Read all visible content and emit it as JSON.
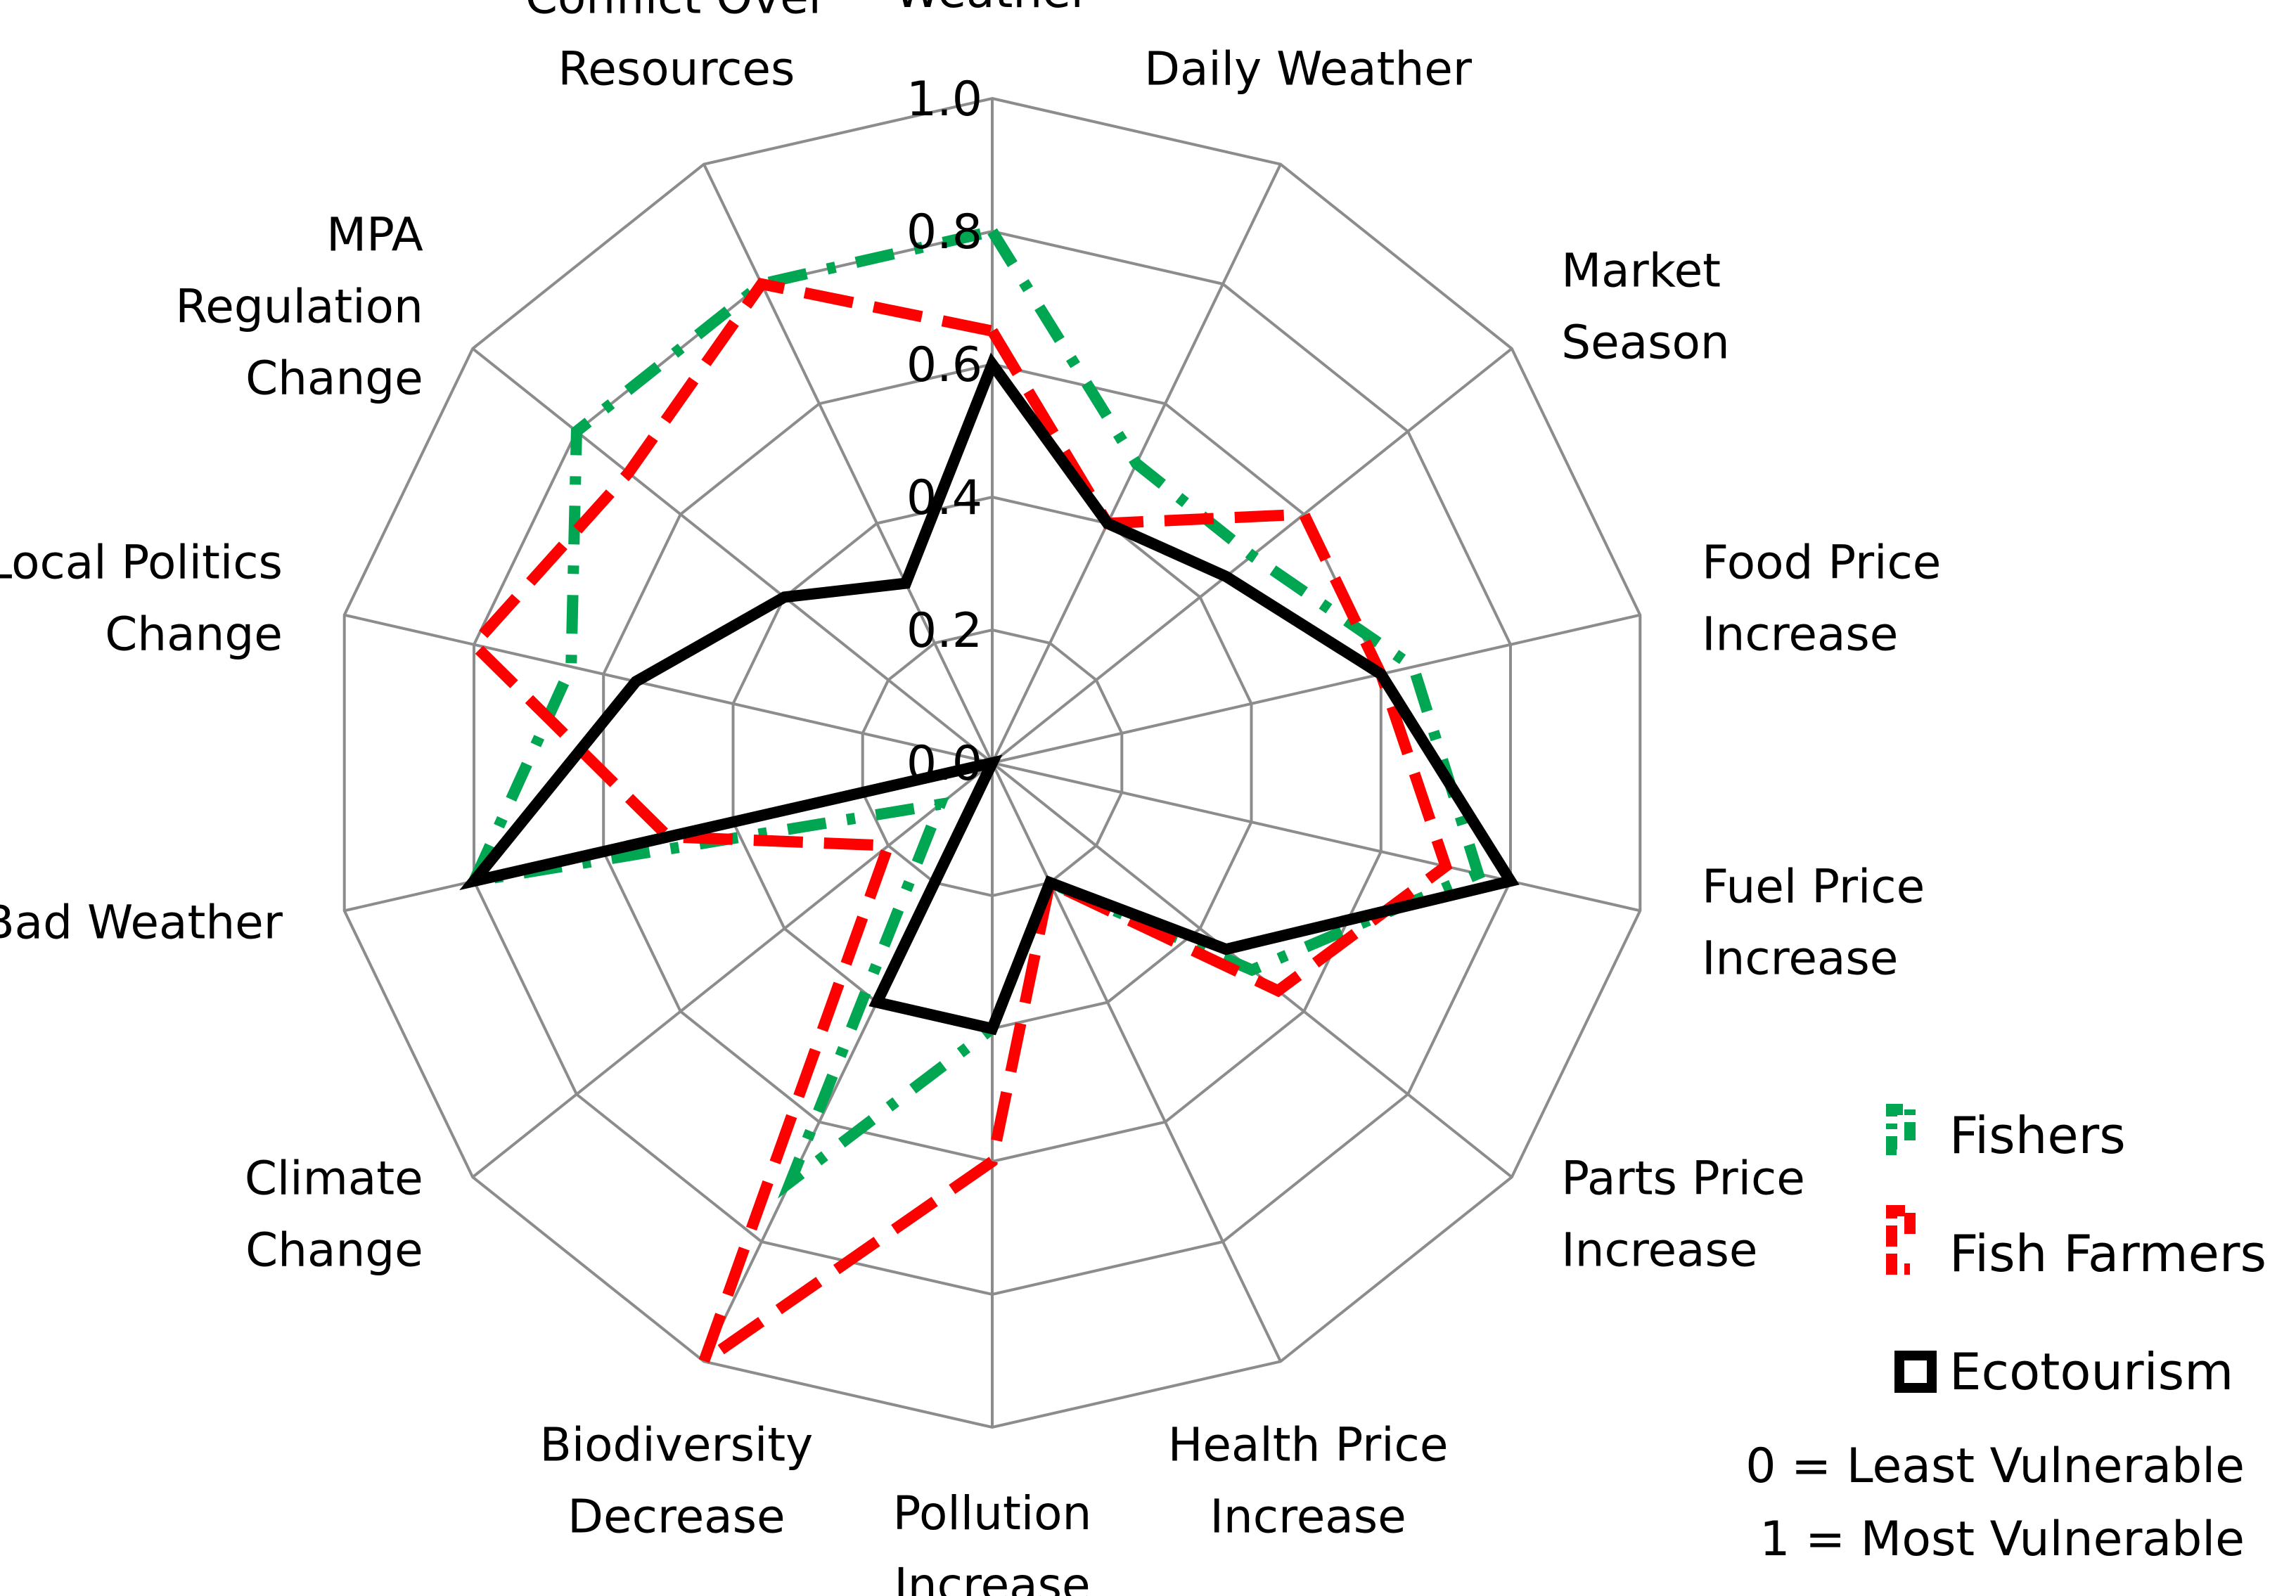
{
  "chart_data": {
    "type": "radar",
    "title": "",
    "categories": [
      "Weather",
      "Daily Weather",
      "Market Season",
      "Food Price Increase",
      "Fuel Price Increase",
      "Parts Price Increase",
      "Health Price Increase",
      "Pollution Increase",
      "Biodiversity Decrease",
      "Climate Change",
      "Bad Weather",
      "Local Politics Change",
      "MPA Regulation Change",
      "Conflict Over Resources"
    ],
    "category_label_lines": [
      [
        "Weather"
      ],
      [
        "Daily Weather"
      ],
      [
        "Market",
        "Season"
      ],
      [
        "Food Price",
        "Increase"
      ],
      [
        "Fuel Price",
        "Increase"
      ],
      [
        "Parts Price",
        "Increase"
      ],
      [
        "Health Price",
        "Increase"
      ],
      [
        "Pollution",
        "Increase"
      ],
      [
        "Biodiversity",
        "Decrease"
      ],
      [
        "Climate",
        "Change"
      ],
      [
        "Bad Weather"
      ],
      [
        "Local Politics",
        "Change"
      ],
      [
        "MPA",
        "Regulation",
        "Change"
      ],
      [
        "Conflict Over",
        "Resources"
      ]
    ],
    "rlim": [
      0,
      1.0
    ],
    "ticks": [
      "0.0",
      "0.2",
      "0.4",
      "0.6",
      "0.8",
      "1.0"
    ],
    "grid": true,
    "legend_position": "right",
    "series": [
      {
        "name": "Fishers",
        "color": "#00A651",
        "dash": "dash-dot",
        "values": [
          0.8,
          0.5,
          0.5,
          0.65,
          0.75,
          0.5,
          0.2,
          0.4,
          0.7,
          0.1,
          0.8,
          0.65,
          0.8,
          0.8
        ]
      },
      {
        "name": "Fish Farmers",
        "color": "#FF0000",
        "dash": "dash",
        "values": [
          0.65,
          0.4,
          0.6,
          0.6,
          0.7,
          0.55,
          0.2,
          0.6,
          1.0,
          0.2,
          0.5,
          0.8,
          0.7,
          0.8
        ]
      },
      {
        "name": "Ecotourism",
        "color": "#000000",
        "dash": "solid",
        "values": [
          0.6,
          0.4,
          0.45,
          0.6,
          0.8,
          0.45,
          0.2,
          0.4,
          0.4,
          0.0,
          0.8,
          0.55,
          0.4,
          0.3
        ]
      }
    ],
    "notes": [
      "0 = Least Vulnerable",
      "1 = Most Vulnerable"
    ]
  }
}
